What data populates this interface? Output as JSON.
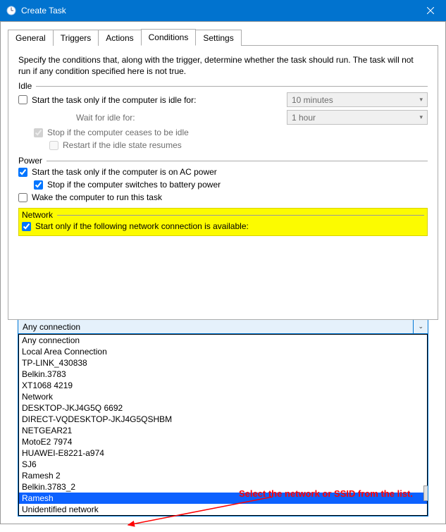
{
  "window": {
    "title": "Create Task"
  },
  "tabs": {
    "general": "General",
    "triggers": "Triggers",
    "actions": "Actions",
    "conditions": "Conditions",
    "settings": "Settings"
  },
  "conditions": {
    "description": "Specify the conditions that, along with the trigger, determine whether the task should run.  The task will not run  if any condition specified here is not true.",
    "idle": {
      "label": "Idle",
      "start_only_idle": "Start the task only if the computer is idle for:",
      "idle_duration": "10 minutes",
      "wait_for_idle_label": "Wait for idle for:",
      "wait_for_idle_value": "1 hour",
      "stop_not_idle": "Stop if the computer ceases to be idle",
      "restart_idle": "Restart if the idle state resumes"
    },
    "power": {
      "label": "Power",
      "start_ac": "Start the task only if the computer is on AC power",
      "stop_battery": "Stop if the computer switches to battery power",
      "wake": "Wake the computer to run this task"
    },
    "network": {
      "label": "Network",
      "start_net": "Start only if the following network connection is available:",
      "selected": "Any connection",
      "options": [
        "Any connection",
        "Local Area Connection",
        "TP-LINK_430838",
        "Belkin.3783",
        "XT1068 4219",
        "Network",
        "DESKTOP-JKJ4G5Q 6692",
        "DIRECT-VQDESKTOP-JKJ4G5QSHBM",
        "NETGEAR21",
        "MotoE2 7974",
        "HUAWEI-E8221-a974",
        "SJ6",
        "Ramesh 2",
        "Belkin.3783_2",
        "Ramesh",
        "Unidentified network"
      ],
      "highlighted_index": 14
    }
  },
  "annotation": "Select the network or SSID from the list."
}
